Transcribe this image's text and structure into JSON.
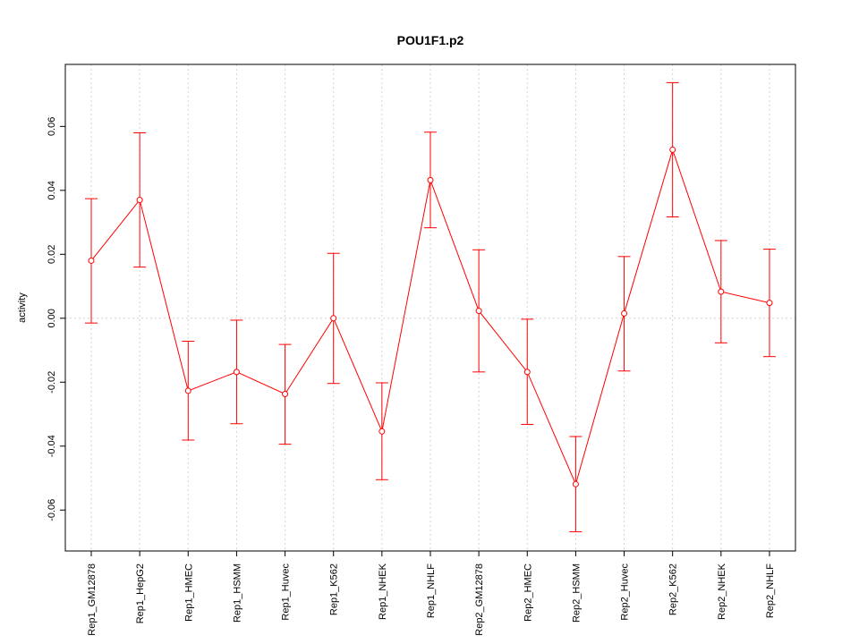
{
  "chart_data": {
    "type": "line",
    "title": "POU1F1.p2",
    "xlabel": "",
    "ylabel": "activity",
    "categories": [
      "Rep1_GM12878",
      "Rep1_HepG2",
      "Rep1_HMEC",
      "Rep1_HSMM",
      "Rep1_Huvec",
      "Rep1_K562",
      "Rep1_NHEK",
      "Rep1_NHLF",
      "Rep2_GM12878",
      "Rep2_HMEC",
      "Rep2_HSMM",
      "Rep2_Huvec",
      "Rep2_K562",
      "Rep2_NHEK",
      "Rep2_NHLF"
    ],
    "series": [
      {
        "values": [
          0.018,
          0.037,
          -0.0227,
          -0.0168,
          -0.0237,
          0.0,
          -0.0354,
          0.0432,
          0.0023,
          -0.0168,
          -0.0519,
          0.0015,
          0.0527,
          0.0083,
          0.0048
        ],
        "error_low": [
          -0.0015,
          0.016,
          -0.0381,
          -0.033,
          -0.0394,
          -0.0204,
          -0.0505,
          0.0283,
          -0.0168,
          -0.0332,
          -0.0668,
          -0.0165,
          0.0317,
          -0.0077,
          -0.012
        ],
        "error_high": [
          0.0374,
          0.058,
          -0.0072,
          -0.0006,
          -0.0082,
          0.0203,
          -0.0202,
          0.0582,
          0.0214,
          -0.0003,
          -0.037,
          0.0193,
          0.0737,
          0.0243,
          0.0216
        ],
        "color": "#ff0000"
      }
    ],
    "yticks": [
      -0.06,
      -0.04,
      -0.02,
      0.0,
      0.02,
      0.04,
      0.06
    ],
    "ytick_labels": [
      "-0.06",
      "-0.04",
      "-0.02",
      "0.00",
      "0.02",
      "0.04",
      "0.06"
    ],
    "ylim": [
      -0.0728,
      0.0794
    ],
    "grid": true,
    "reference_line": 0.0
  }
}
